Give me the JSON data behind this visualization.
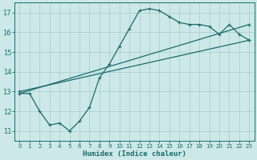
{
  "xlabel": "Humidex (Indice chaleur)",
  "ylabel": "",
  "bg_color": "#cce8e8",
  "line_color": "#1a6b6b",
  "grid_color": "#aacccc",
  "xlim": [
    -0.5,
    23.5
  ],
  "ylim": [
    10.5,
    17.5
  ],
  "xticks": [
    0,
    1,
    2,
    3,
    4,
    5,
    6,
    7,
    8,
    9,
    10,
    11,
    12,
    13,
    14,
    15,
    16,
    17,
    18,
    19,
    20,
    21,
    22,
    23
  ],
  "yticks": [
    11,
    12,
    13,
    14,
    15,
    16,
    17
  ],
  "line1_x": [
    0,
    1,
    2,
    3,
    4,
    5,
    6,
    7,
    8,
    9,
    10,
    11,
    12,
    13,
    14,
    15,
    16,
    17,
    18,
    19,
    20,
    21,
    22,
    23
  ],
  "line1_y": [
    12.9,
    12.9,
    12.0,
    11.3,
    11.4,
    11.0,
    11.5,
    12.2,
    13.7,
    14.4,
    15.3,
    16.2,
    17.1,
    17.2,
    17.1,
    16.8,
    16.5,
    16.4,
    16.4,
    16.3,
    15.9,
    16.4,
    15.9,
    15.6
  ],
  "line2_x": [
    0,
    23
  ],
  "line2_y": [
    12.9,
    16.4
  ],
  "line3_x": [
    0,
    23
  ],
  "line3_y": [
    13.0,
    15.6
  ],
  "markersize": 3.5,
  "linewidth": 0.9
}
